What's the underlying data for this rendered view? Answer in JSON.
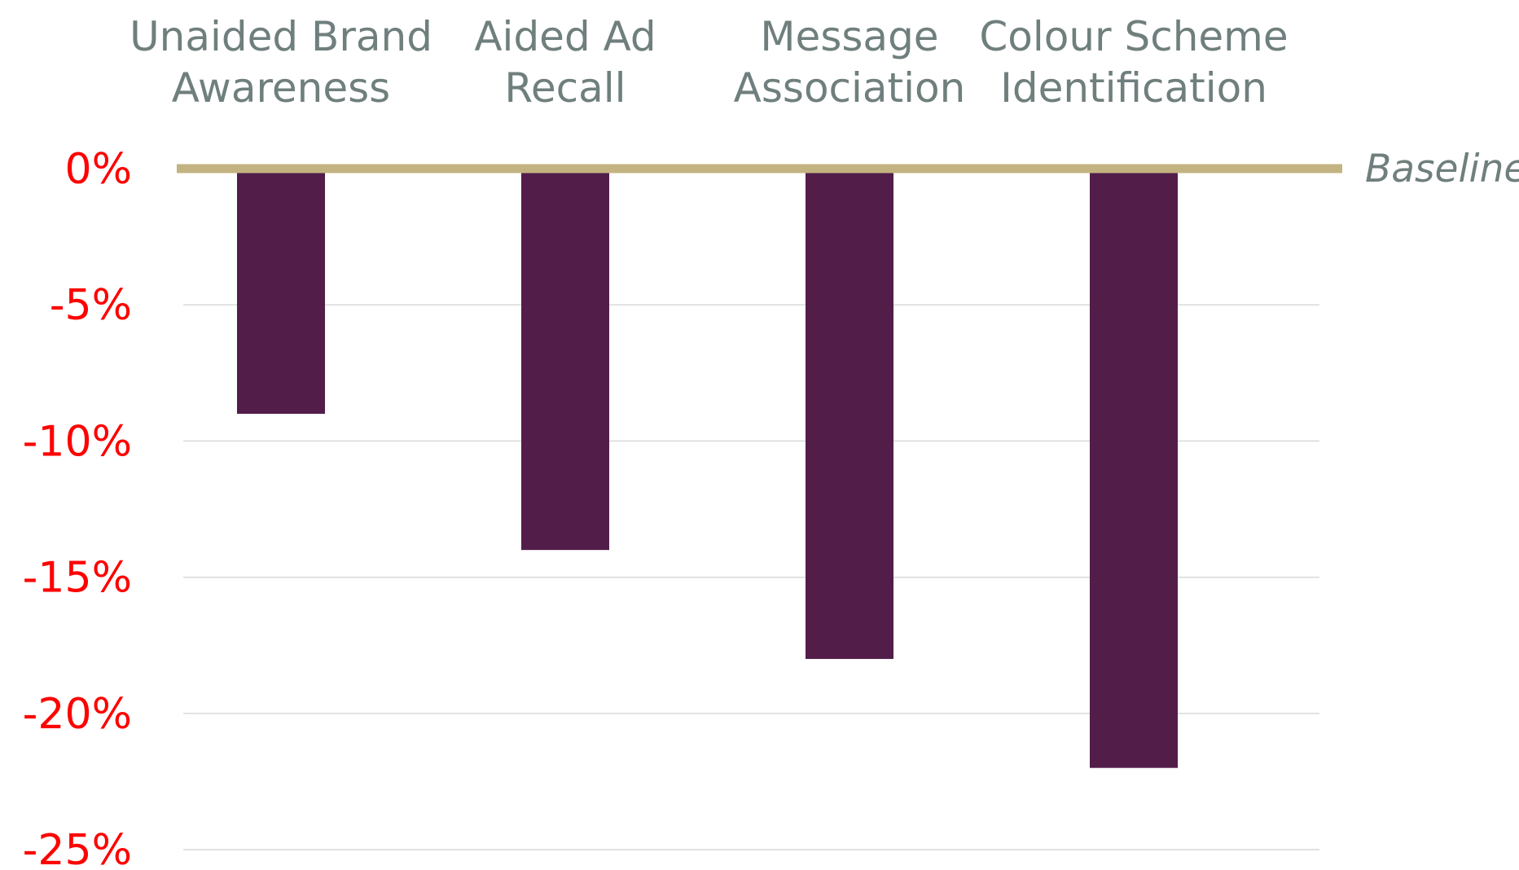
{
  "chart_data": {
    "type": "bar",
    "categories": [
      [
        "Unaided Brand",
        "Awareness"
      ],
      [
        "Aided Ad",
        "Recall"
      ],
      [
        "Message",
        "Association"
      ],
      [
        "Colour Scheme",
        "Identification"
      ]
    ],
    "values": [
      -9,
      -14,
      -18,
      -22
    ],
    "ylim": [
      -25,
      0
    ],
    "yticks": [
      0,
      -5,
      -10,
      -15,
      -20,
      -25
    ],
    "ytick_labels": [
      "0%",
      "-5%",
      "-10%",
      "-15%",
      "-20%",
      "-25%"
    ],
    "baseline_label": "Baseline",
    "grid": true,
    "colors": {
      "bar": "#521d49",
      "baseline": "#c3b381",
      "grid": "#d9d9d9",
      "tick_label": "#ff0000",
      "category_label": "#6f7f7d"
    }
  }
}
